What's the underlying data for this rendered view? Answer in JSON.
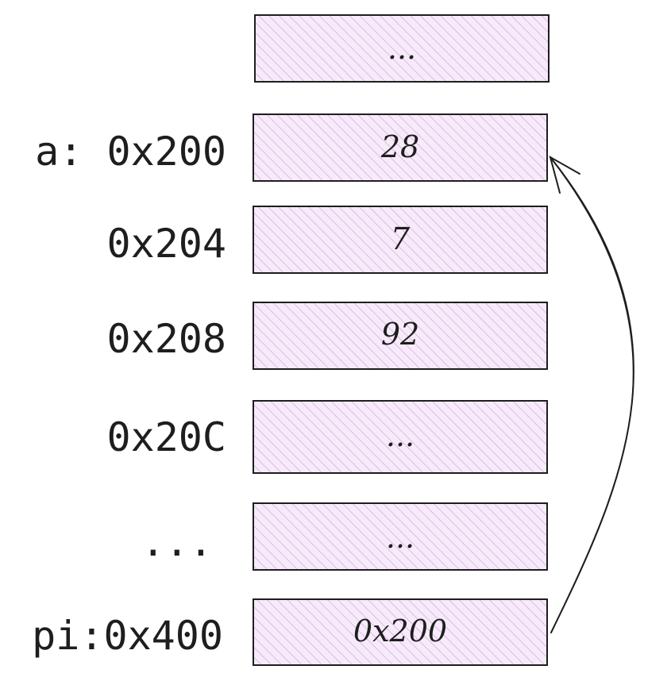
{
  "diagram": {
    "cells": [
      {
        "address": "",
        "value": "..."
      },
      {
        "address": "a: 0x200",
        "value": "28"
      },
      {
        "address": "0x204",
        "value": "7"
      },
      {
        "address": "0x208",
        "value": "92"
      },
      {
        "address": "0x20C",
        "value": "..."
      },
      {
        "address": "...",
        "value": "..."
      },
      {
        "address": "pi:0x400",
        "value": "0x200"
      }
    ],
    "arrow": {
      "from_cell": 6,
      "to_cell": 1
    },
    "colors": {
      "cell_fill": "#f6ecf9",
      "hatch": "#e3a6ec",
      "stroke": "#1e1e1e"
    }
  }
}
